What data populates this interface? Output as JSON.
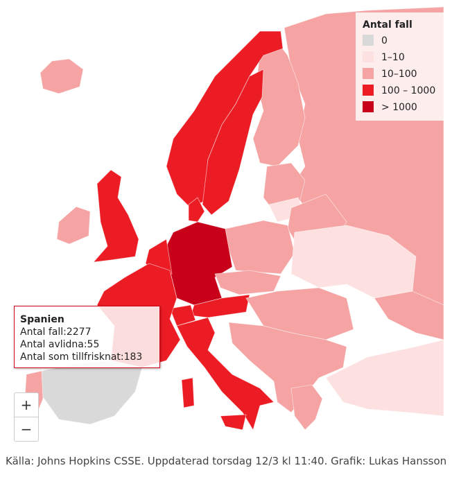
{
  "legend": {
    "title": "Antal fall",
    "items": [
      {
        "label": "0",
        "color": "#d9d9d9"
      },
      {
        "label": "1–10",
        "color": "#fde0e0"
      },
      {
        "label": "10–100",
        "color": "#f5a3a3"
      },
      {
        "label": "100 – 1000",
        "color": "#ec1c24"
      },
      {
        "label": "> 1000",
        "color": "#c8001a"
      }
    ]
  },
  "tooltip": {
    "title": "Spanien",
    "lines": [
      "Antal fall:2277",
      "Antal avlidna:55",
      "Antal som tillfrisknat:183"
    ]
  },
  "zoom": {
    "in": "+",
    "out": "−"
  },
  "caption": "Källa: Johns Hopkins CSSE. Uppdaterad torsdag 12/3 kl 11:40. Grafik: Lukas Hansson"
}
